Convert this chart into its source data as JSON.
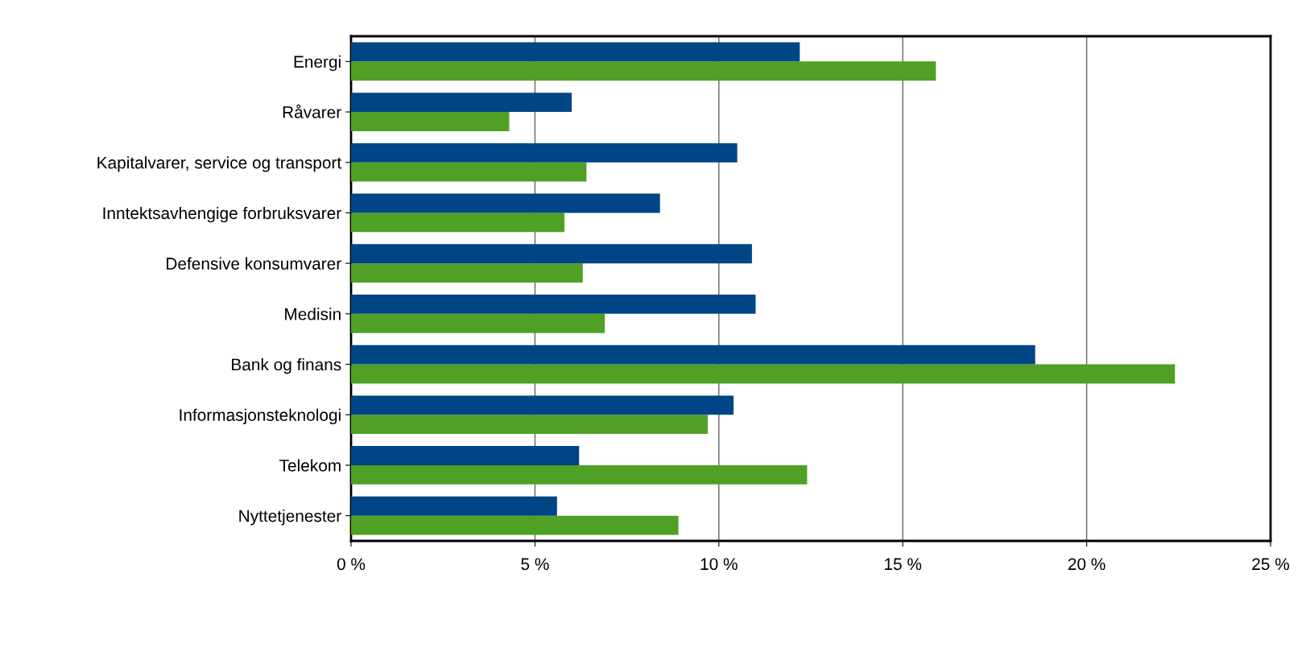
{
  "chart_data": {
    "type": "bar",
    "orientation": "horizontal",
    "categories": [
      "Energi",
      "Råvarer",
      "Kapitalvarer, service og transport",
      "Inntektsavhengige forbruksvarer",
      "Defensive konsumvarer",
      "Medisin",
      "Bank og finans",
      "Informasjonsteknologi",
      "Telekom",
      "Nyttetjenester"
    ],
    "series": [
      {
        "color": "#4fa024",
        "values": [
          15.9,
          4.3,
          6.4,
          5.8,
          6.3,
          6.9,
          22.4,
          9.7,
          12.4,
          8.9
        ]
      },
      {
        "color": "#004585",
        "values": [
          12.2,
          6.0,
          10.5,
          8.4,
          10.9,
          11.0,
          18.6,
          10.4,
          6.2,
          5.6
        ]
      }
    ],
    "xlim": [
      0,
      25
    ],
    "xticks": [
      {
        "value": 0,
        "label": "0 %"
      },
      {
        "value": 5,
        "label": "5 %"
      },
      {
        "value": 10,
        "label": "10 %"
      },
      {
        "value": 15,
        "label": "15 %"
      },
      {
        "value": 20,
        "label": "20 %"
      },
      {
        "value": 25,
        "label": "25 %"
      }
    ],
    "grid": "x"
  }
}
